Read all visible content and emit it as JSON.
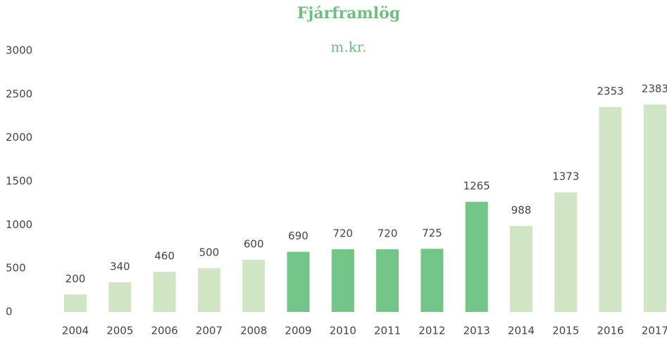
{
  "chart_data": {
    "type": "bar",
    "title": "Fjárframlög",
    "subtitle": "m.kr.",
    "categories": [
      "2004",
      "2005",
      "2006",
      "2007",
      "2008",
      "2009",
      "2010",
      "2011",
      "2012",
      "2013",
      "2014",
      "2015",
      "2016",
      "2017"
    ],
    "values": [
      200,
      340,
      460,
      500,
      600,
      690,
      720,
      720,
      725,
      1265,
      988,
      1373,
      2353,
      2383
    ],
    "colors": [
      "#cfe5c4",
      "#cfe5c4",
      "#cfe5c4",
      "#cfe5c4",
      "#cfe5c4",
      "#72c587",
      "#72c587",
      "#72c587",
      "#72c587",
      "#72c587",
      "#cfe5c4",
      "#cfe5c4",
      "#cfe5c4",
      "#cfe5c4"
    ],
    "ylim": [
      0,
      3000
    ],
    "yticks": [
      0,
      500,
      1000,
      1500,
      2000,
      2500,
      3000
    ],
    "grid": false
  }
}
